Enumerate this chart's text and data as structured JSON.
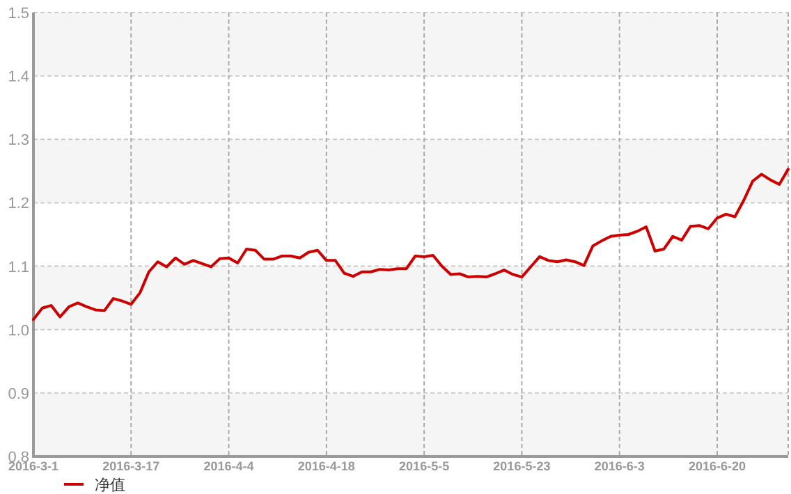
{
  "chart_data": {
    "type": "line",
    "categories": [
      "2016-3-1",
      null,
      null,
      null,
      null,
      null,
      null,
      null,
      null,
      null,
      null,
      "2016-3-17",
      null,
      null,
      null,
      null,
      null,
      null,
      null,
      null,
      null,
      null,
      "2016-4-4",
      null,
      null,
      null,
      null,
      null,
      null,
      null,
      null,
      null,
      null,
      "2016-4-18",
      null,
      null,
      null,
      null,
      null,
      null,
      null,
      null,
      null,
      null,
      "2016-5-5",
      null,
      null,
      null,
      null,
      null,
      null,
      null,
      null,
      null,
      null,
      "2016-5-23",
      null,
      null,
      null,
      null,
      null,
      null,
      null,
      null,
      null,
      null,
      "2016-6-3",
      null,
      null,
      null,
      null,
      null,
      null,
      null,
      null,
      null,
      null,
      "2016-6-20",
      null,
      null,
      null,
      null,
      null,
      null,
      null,
      null
    ],
    "series": [
      {
        "name": "净值",
        "color": "#cc0000",
        "values": [
          1.016,
          1.034,
          1.038,
          1.02,
          1.036,
          1.042,
          1.036,
          1.031,
          1.03,
          1.049,
          1.045,
          1.04,
          1.058,
          1.091,
          1.107,
          1.099,
          1.113,
          1.103,
          1.109,
          1.104,
          1.099,
          1.112,
          1.113,
          1.105,
          1.127,
          1.125,
          1.111,
          1.111,
          1.116,
          1.116,
          1.113,
          1.122,
          1.125,
          1.109,
          1.109,
          1.089,
          1.084,
          1.091,
          1.091,
          1.095,
          1.094,
          1.096,
          1.096,
          1.116,
          1.115,
          1.117,
          1.1,
          1.087,
          1.088,
          1.083,
          1.084,
          1.083,
          1.088,
          1.094,
          1.087,
          1.083,
          1.099,
          1.115,
          1.109,
          1.107,
          1.11,
          1.107,
          1.101,
          1.132,
          1.14,
          1.147,
          1.149,
          1.15,
          1.155,
          1.162,
          1.124,
          1.127,
          1.147,
          1.141,
          1.163,
          1.164,
          1.159,
          1.176,
          1.182,
          1.178,
          1.204,
          1.234,
          1.245,
          1.236,
          1.229,
          1.253
        ]
      }
    ],
    "ylim": [
      0.8,
      1.5
    ],
    "yticks": [
      0.8,
      0.9,
      {
        "value": 1.0,
        "label": "1.0"
      },
      1.1,
      1.2,
      1.3,
      1.4,
      1.5
    ],
    "grid": true,
    "legend": "bottom",
    "marker": "none",
    "line_style": "solid"
  }
}
